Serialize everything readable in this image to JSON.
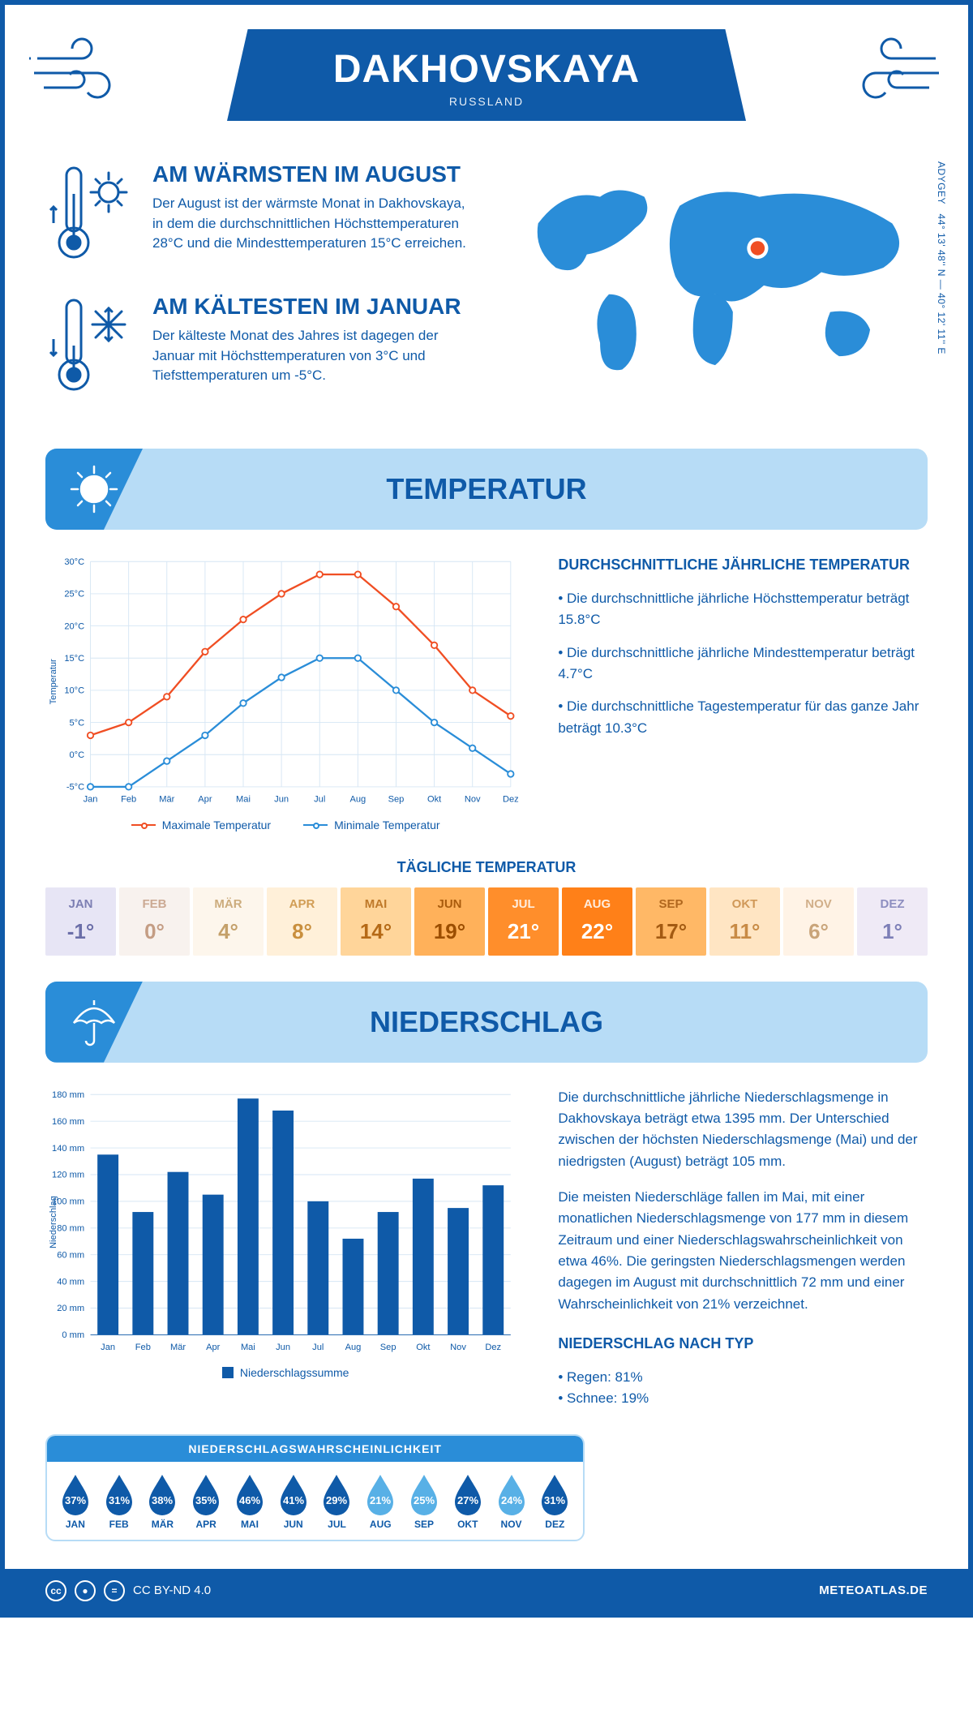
{
  "header": {
    "title": "DAKHOVSKAYA",
    "subtitle": "RUSSLAND"
  },
  "coords": {
    "region": "ADYGEY",
    "text": "44° 13' 48'' N — 40° 12' 11'' E"
  },
  "facts": {
    "warm": {
      "title": "AM WÄRMSTEN IM AUGUST",
      "text": "Der August ist der wärmste Monat in Dakhovskaya, in dem die durchschnittlichen Höchsttemperaturen 28°C und die Mindesttemperaturen 15°C erreichen."
    },
    "cold": {
      "title": "AM KÄLTESTEN IM JANUAR",
      "text": "Der kälteste Monat des Jahres ist dagegen der Januar mit Höchsttemperaturen von 3°C und Tiefsttemperaturen um -5°C."
    }
  },
  "sections": {
    "temperature": "TEMPERATUR",
    "precipitation": "NIEDERSCHLAG"
  },
  "months": [
    "Jan",
    "Feb",
    "Mär",
    "Apr",
    "Mai",
    "Jun",
    "Jul",
    "Aug",
    "Sep",
    "Okt",
    "Nov",
    "Dez"
  ],
  "months_upper": [
    "JAN",
    "FEB",
    "MÄR",
    "APR",
    "MAI",
    "JUN",
    "JUL",
    "AUG",
    "SEP",
    "OKT",
    "NOV",
    "DEZ"
  ],
  "temp_chart": {
    "type": "line",
    "y_label": "Temperatur",
    "y_min": -5,
    "y_max": 30,
    "y_step": 5,
    "series": {
      "max": {
        "label": "Maximale Temperatur",
        "color": "#f04e23",
        "values": [
          3,
          5,
          9,
          16,
          21,
          25,
          28,
          28,
          23,
          17,
          10,
          6
        ]
      },
      "min": {
        "label": "Minimale Temperatur",
        "color": "#2a8dd8",
        "values": [
          -5,
          -5,
          -1,
          3,
          8,
          12,
          15,
          15,
          10,
          5,
          1,
          -3
        ]
      }
    },
    "grid_color": "#d6e6f4",
    "background": "#ffffff"
  },
  "temp_text": {
    "title": "DURCHSCHNITTLICHE JÄHRLICHE TEMPERATUR",
    "bullets": [
      "• Die durchschnittliche jährliche Höchsttemperatur beträgt 15.8°C",
      "• Die durchschnittliche jährliche Mindesttemperatur beträgt 4.7°C",
      "• Die durchschnittliche Tagestemperatur für das ganze Jahr beträgt 10.3°C"
    ]
  },
  "daily": {
    "title": "TÄGLICHE TEMPERATUR",
    "values": [
      "-1°",
      "0°",
      "4°",
      "8°",
      "14°",
      "19°",
      "21°",
      "22°",
      "17°",
      "11°",
      "6°",
      "1°"
    ],
    "cell_colors": [
      "#e7e5f5",
      "#f8f2ee",
      "#fdf6ec",
      "#fff0d9",
      "#ffd59a",
      "#ffb15a",
      "#ff8e2b",
      "#ff8018",
      "#ffb866",
      "#ffe5c3",
      "#fff3e6",
      "#efeaf6"
    ],
    "text_colors": [
      "#6b6ea8",
      "#c49d84",
      "#c4a06a",
      "#c98f3e",
      "#b56a17",
      "#9c4e00",
      "#ffffff",
      "#ffffff",
      "#a35a12",
      "#c88b46",
      "#c9a47a",
      "#7d7fb7"
    ]
  },
  "precip_chart": {
    "type": "bar",
    "y_label": "Niederschlag",
    "y_min": 0,
    "y_max": 180,
    "y_step": 20,
    "values": [
      135,
      92,
      122,
      105,
      177,
      168,
      100,
      72,
      92,
      117,
      95,
      112
    ],
    "bar_color": "#0f5aa8",
    "grid_color": "#d6e6f4",
    "legend_label": "Niederschlagssumme"
  },
  "precip_text": {
    "p1": "Die durchschnittliche jährliche Niederschlagsmenge in Dakhovskaya beträgt etwa 1395 mm. Der Unterschied zwischen der höchsten Niederschlagsmenge (Mai) und der niedrigsten (August) beträgt 105 mm.",
    "p2": "Die meisten Niederschläge fallen im Mai, mit einer monatlichen Niederschlagsmenge von 177 mm in diesem Zeitraum und einer Niederschlagswahrscheinlichkeit von etwa 46%. Die geringsten Niederschlagsmengen werden dagegen im August mit durchschnittlich 72 mm und einer Wahrscheinlichkeit von 21% verzeichnet.",
    "type_title": "NIEDERSCHLAG NACH TYP",
    "type_items": [
      "• Regen: 81%",
      "• Schnee: 19%"
    ]
  },
  "prob": {
    "title": "NIEDERSCHLAGSWAHRSCHEINLICHKEIT",
    "values": [
      37,
      31,
      38,
      35,
      46,
      41,
      29,
      21,
      25,
      27,
      24,
      31
    ],
    "fill_dark": "#0f5aa8",
    "fill_light": "#58b0e6"
  },
  "footer": {
    "license": "CC BY-ND 4.0",
    "brand": "METEOATLAS.DE"
  },
  "colors": {
    "primary": "#0f5aa8",
    "accent": "#2a8dd8",
    "banner_bg": "#b7dcf6"
  }
}
